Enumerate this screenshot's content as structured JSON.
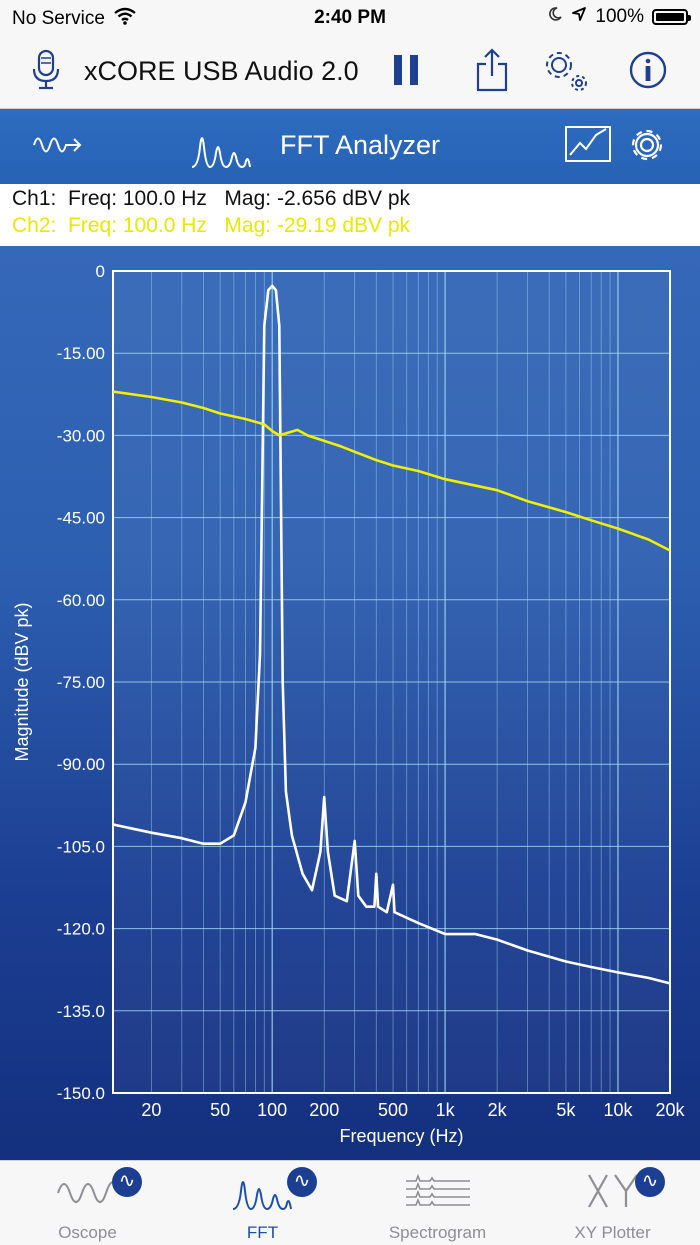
{
  "status": {
    "carrier": "No Service",
    "time": "2:40 PM",
    "battery": "100%"
  },
  "nav": {
    "device_title": "xCORE USB Audio 2.0"
  },
  "analyzer": {
    "title": "FFT Analyzer"
  },
  "readout": {
    "ch1": "Ch1:  Freq: 100.0 Hz   Mag: -2.656 dBV pk",
    "ch2": "Ch2:  Freq: 100.0 Hz   Mag: -29.19 dBV pk"
  },
  "colors": {
    "ch1": "#ffffff",
    "ch2": "#f0f000",
    "badge": "#1d3f93",
    "active_tab": "#1e4fa8"
  },
  "chart_data": {
    "type": "line",
    "xlabel": "Frequency (Hz)",
    "ylabel": "Magnitude (dBV pk)",
    "x_scale": "log",
    "xlim": [
      12,
      20000
    ],
    "ylim": [
      -150,
      0
    ],
    "y_ticks": [
      0,
      -15,
      -30,
      -45,
      -60,
      -75,
      -90,
      -105,
      -120,
      -135,
      -150
    ],
    "y_tick_labels": [
      "0",
      "-15.00",
      "-30.00",
      "-45.00",
      "-60.00",
      "-75.00",
      "-90.00",
      "-105.0",
      "-120.0",
      "-135.0",
      "-150.0"
    ],
    "x_ticks": [
      20,
      50,
      100,
      200,
      500,
      1000,
      2000,
      5000,
      10000,
      20000
    ],
    "x_tick_labels": [
      "20",
      "50",
      "100",
      "200",
      "500",
      "1k",
      "2k",
      "5k",
      "10k",
      "20k"
    ],
    "grid": true,
    "series": [
      {
        "channel": "Ch1",
        "color": "#ffffff",
        "points": [
          [
            12,
            -101
          ],
          [
            20,
            -102.5
          ],
          [
            30,
            -103.5
          ],
          [
            40,
            -104.5
          ],
          [
            50,
            -104.5
          ],
          [
            60,
            -103
          ],
          [
            70,
            -97
          ],
          [
            80,
            -87
          ],
          [
            85,
            -70
          ],
          [
            90,
            -10
          ],
          [
            95,
            -3.5
          ],
          [
            100,
            -2.7
          ],
          [
            105,
            -3.5
          ],
          [
            110,
            -10
          ],
          [
            115,
            -75
          ],
          [
            120,
            -95
          ],
          [
            130,
            -103
          ],
          [
            150,
            -110
          ],
          [
            170,
            -113
          ],
          [
            190,
            -106
          ],
          [
            200,
            -96
          ],
          [
            210,
            -106
          ],
          [
            230,
            -114
          ],
          [
            270,
            -115
          ],
          [
            300,
            -104
          ],
          [
            315,
            -114
          ],
          [
            350,
            -116
          ],
          [
            390,
            -116
          ],
          [
            400,
            -110
          ],
          [
            410,
            -116
          ],
          [
            460,
            -117
          ],
          [
            500,
            -112
          ],
          [
            510,
            -117
          ],
          [
            700,
            -119
          ],
          [
            1000,
            -121
          ],
          [
            1500,
            -121
          ],
          [
            2000,
            -122
          ],
          [
            3000,
            -124
          ],
          [
            5000,
            -126
          ],
          [
            7000,
            -127
          ],
          [
            10000,
            -128
          ],
          [
            15000,
            -129
          ],
          [
            20000,
            -130
          ]
        ]
      },
      {
        "channel": "Ch2",
        "color": "#f0f000",
        "points": [
          [
            12,
            -22
          ],
          [
            20,
            -23
          ],
          [
            30,
            -24
          ],
          [
            40,
            -25
          ],
          [
            50,
            -26
          ],
          [
            70,
            -27
          ],
          [
            90,
            -28
          ],
          [
            100,
            -29.2
          ],
          [
            110,
            -30
          ],
          [
            140,
            -29
          ],
          [
            160,
            -30
          ],
          [
            200,
            -31
          ],
          [
            250,
            -32
          ],
          [
            300,
            -33
          ],
          [
            400,
            -34.5
          ],
          [
            500,
            -35.5
          ],
          [
            700,
            -36.5
          ],
          [
            1000,
            -38
          ],
          [
            2000,
            -40
          ],
          [
            3000,
            -42
          ],
          [
            5000,
            -44
          ],
          [
            7000,
            -45.5
          ],
          [
            10000,
            -47
          ],
          [
            15000,
            -49
          ],
          [
            20000,
            -51
          ]
        ]
      }
    ]
  },
  "tabs": [
    {
      "label": "Oscope",
      "active": false
    },
    {
      "label": "FFT",
      "active": true
    },
    {
      "label": "Spectrogram",
      "active": false
    },
    {
      "label": "XY Plotter",
      "active": false
    }
  ],
  "badge_glyph": "∿"
}
